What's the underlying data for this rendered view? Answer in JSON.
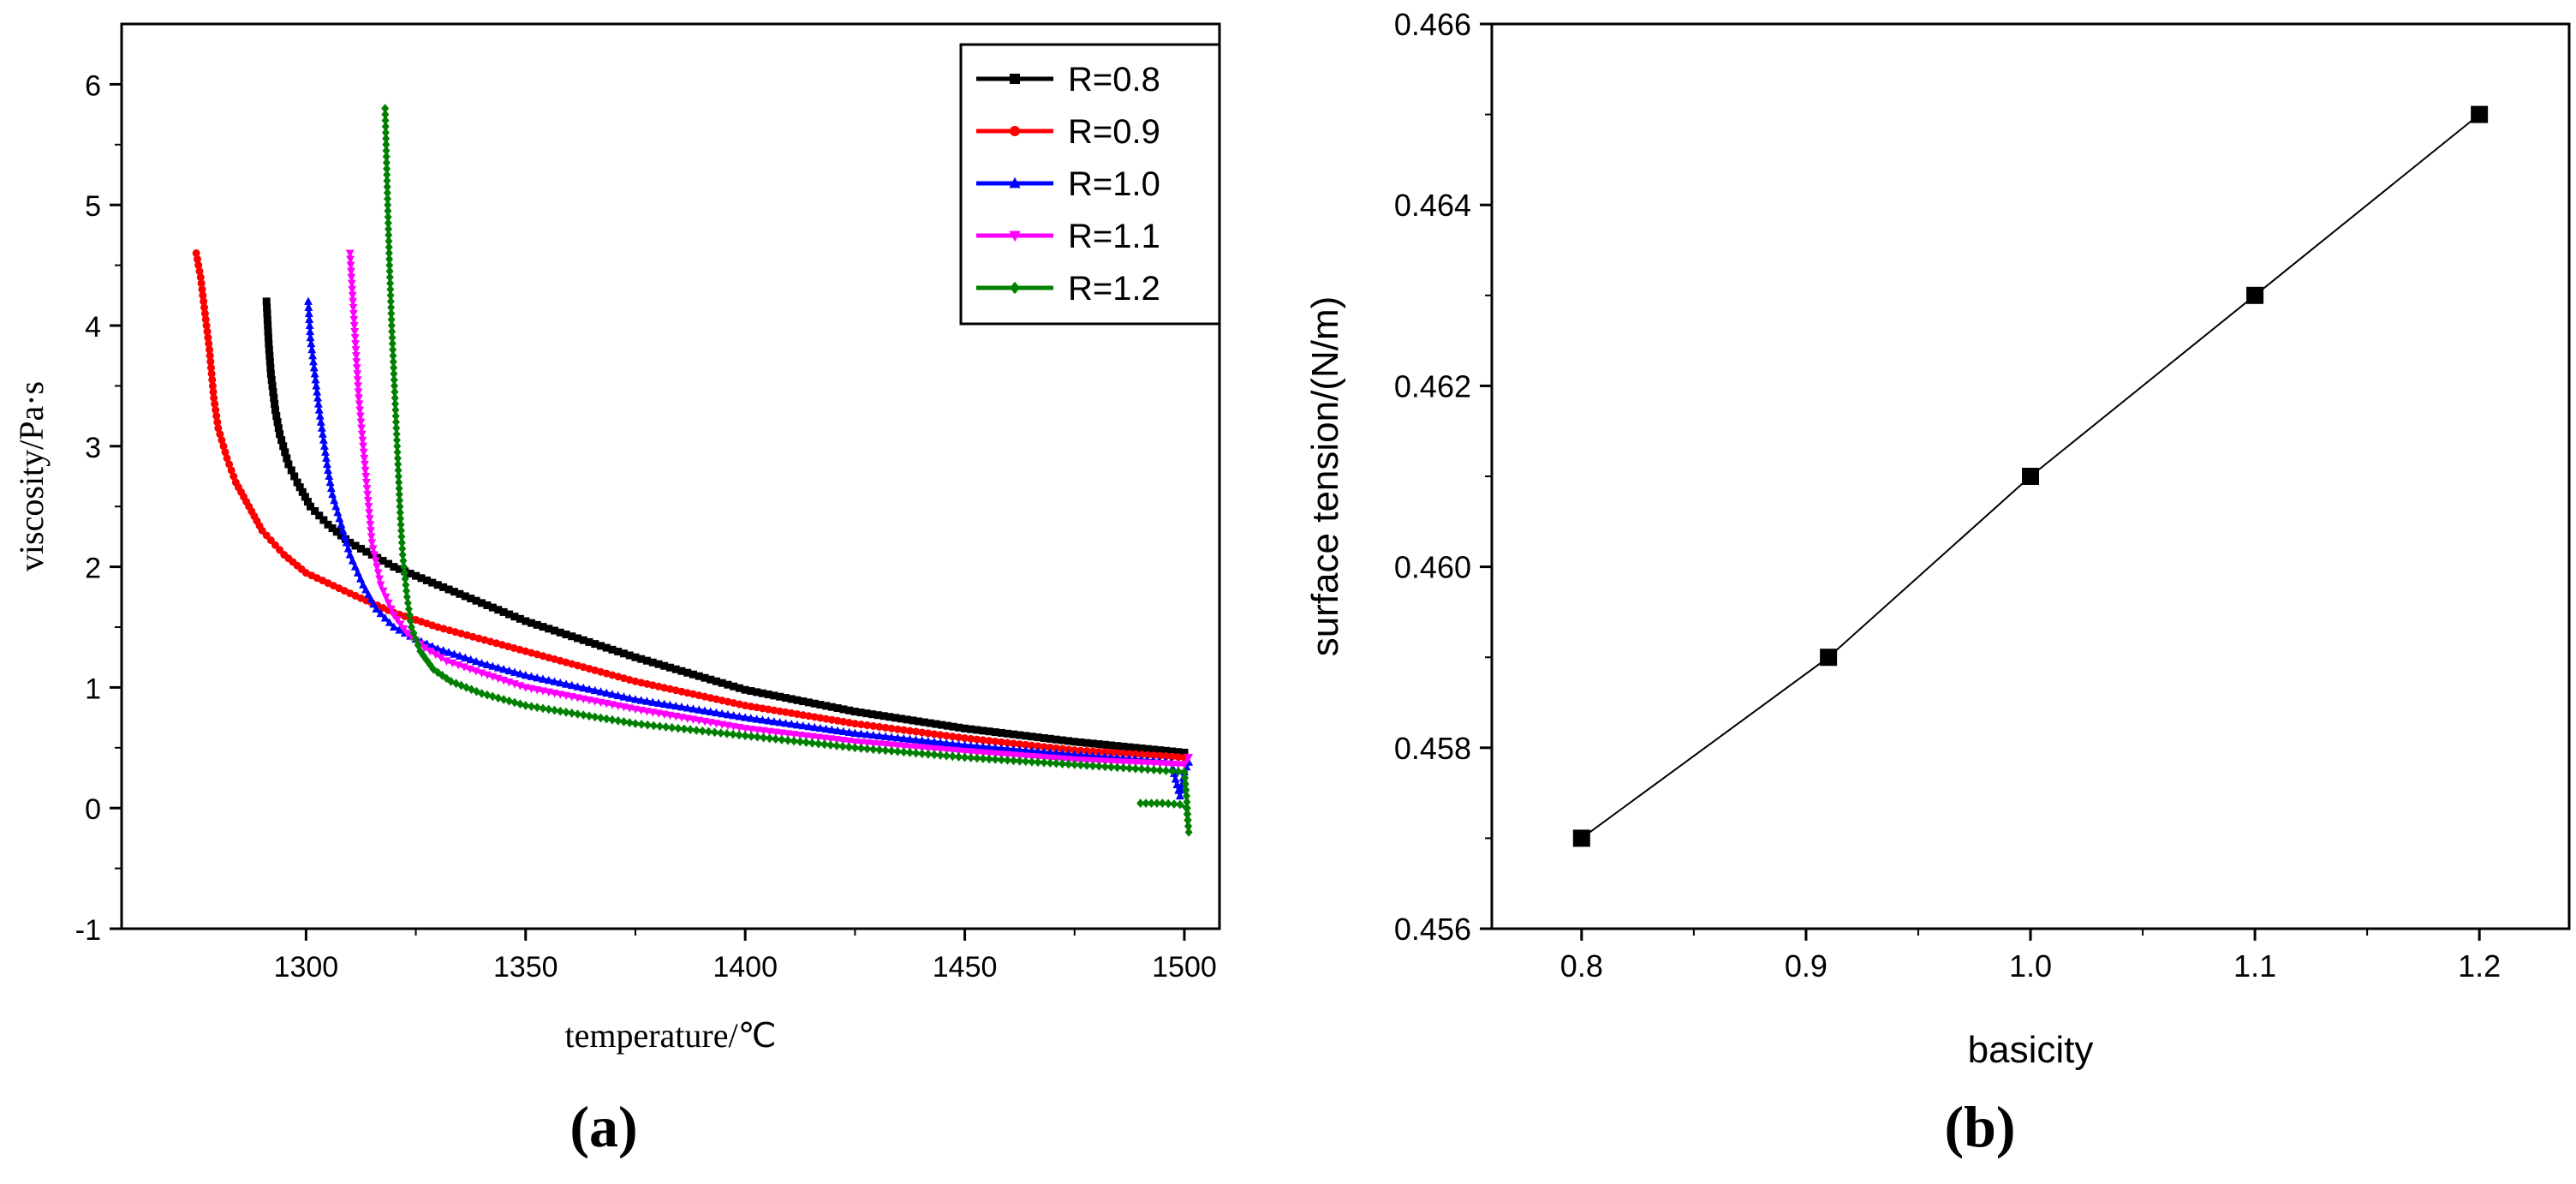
{
  "figure": {
    "panel_a_label": "(a)",
    "panel_b_label": "(b)"
  },
  "chart_data": [
    {
      "id": "a",
      "type": "line",
      "title": "",
      "xlabel": "temperature/℃",
      "ylabel": "viscosity/Pa·s",
      "xlim": [
        1258,
        1508
      ],
      "ylim": [
        -1,
        6.5
      ],
      "xticks": [
        1300,
        1350,
        1400,
        1450,
        1500
      ],
      "xtick_labels": [
        "1300",
        "1350",
        "1400",
        "1450",
        "1500"
      ],
      "yticks": [
        -1,
        0,
        1,
        2,
        3,
        4,
        5,
        6
      ],
      "ytick_labels": [
        "-1",
        "0",
        "1",
        "2",
        "3",
        "4",
        "5",
        "6"
      ],
      "grid": false,
      "legend_position": "top-right",
      "series": [
        {
          "name": "R=0.8",
          "color": "#000000",
          "marker": "square",
          "x": [
            1291,
            1291.5,
            1292,
            1293,
            1294,
            1296,
            1298,
            1301,
            1305,
            1310,
            1320,
            1330,
            1350,
            1375,
            1400,
            1425,
            1450,
            1475,
            1500
          ],
          "y": [
            4.2,
            3.85,
            3.6,
            3.3,
            3.1,
            2.85,
            2.7,
            2.5,
            2.35,
            2.2,
            2.0,
            1.85,
            1.55,
            1.25,
            0.98,
            0.8,
            0.66,
            0.55,
            0.46
          ]
        },
        {
          "name": "R=0.9",
          "color": "#ff0000",
          "marker": "circle",
          "x": [
            1275,
            1276,
            1277,
            1278,
            1279,
            1280,
            1282,
            1284,
            1287,
            1290,
            1295,
            1300,
            1310,
            1320,
            1330,
            1350,
            1375,
            1400,
            1425,
            1450,
            1475,
            1500
          ],
          "y": [
            4.6,
            4.4,
            4.1,
            3.8,
            3.4,
            3.15,
            2.9,
            2.7,
            2.5,
            2.3,
            2.1,
            1.95,
            1.78,
            1.62,
            1.5,
            1.3,
            1.05,
            0.85,
            0.7,
            0.58,
            0.48,
            0.42
          ]
        },
        {
          "name": "R=1.0",
          "color": "#0000ff",
          "marker": "triangle",
          "x": [
            1300.5,
            1301,
            1302,
            1303,
            1304,
            1305,
            1306,
            1308,
            1310,
            1313,
            1316,
            1320,
            1325,
            1330,
            1340,
            1350,
            1375,
            1400,
            1425,
            1450,
            1475,
            1497,
            1499,
            1500,
            1501
          ],
          "y": [
            4.2,
            3.9,
            3.6,
            3.3,
            3.05,
            2.8,
            2.6,
            2.35,
            2.1,
            1.85,
            1.65,
            1.5,
            1.4,
            1.32,
            1.2,
            1.1,
            0.9,
            0.75,
            0.62,
            0.52,
            0.44,
            0.38,
            0.1,
            0.3,
            0.38
          ]
        },
        {
          "name": "R=1.1",
          "color": "#ff00ff",
          "marker": "triangle-down",
          "x": [
            1310,
            1310.5,
            1311,
            1311.5,
            1312,
            1313,
            1314,
            1315,
            1317,
            1320,
            1323,
            1327,
            1332,
            1340,
            1350,
            1375,
            1400,
            1425,
            1450,
            1475,
            1500,
            1501
          ],
          "y": [
            4.6,
            4.3,
            4.0,
            3.7,
            3.4,
            3.0,
            2.6,
            2.2,
            1.85,
            1.6,
            1.45,
            1.33,
            1.22,
            1.12,
            1.0,
            0.82,
            0.66,
            0.55,
            0.47,
            0.4,
            0.36,
            0.42
          ]
        },
        {
          "name": "R=1.2",
          "color": "#008000",
          "marker": "diamond",
          "x": [
            1318,
            1318.3,
            1318.6,
            1319,
            1319.5,
            1320,
            1320.5,
            1321,
            1321.5,
            1322,
            1323,
            1324,
            1326,
            1329,
            1333,
            1340,
            1350,
            1375,
            1400,
            1425,
            1450,
            1475,
            1500,
            1500.5,
            1501,
            1500.5,
            1499,
            1495,
            1490
          ],
          "y": [
            5.8,
            5.4,
            5.0,
            4.5,
            4.0,
            3.6,
            3.2,
            2.8,
            2.4,
            2.1,
            1.75,
            1.5,
            1.3,
            1.15,
            1.05,
            0.95,
            0.85,
            0.7,
            0.6,
            0.5,
            0.42,
            0.36,
            0.3,
            0.1,
            -0.2,
            0.0,
            0.03,
            0.04,
            0.04
          ]
        }
      ]
    },
    {
      "id": "b",
      "type": "line",
      "title": "",
      "xlabel": "basicity",
      "ylabel": "surface tension/(N/m)",
      "xlim": [
        0.76,
        1.24
      ],
      "ylim": [
        0.456,
        0.466
      ],
      "xticks": [
        0.8,
        0.9,
        1.0,
        1.1,
        1.2
      ],
      "xtick_labels": [
        "0.8",
        "0.9",
        "1.0",
        "1.1",
        "1.2"
      ],
      "yticks": [
        0.456,
        0.458,
        0.46,
        0.462,
        0.464,
        0.466
      ],
      "ytick_labels": [
        "0.456",
        "0.458",
        "0.460",
        "0.462",
        "0.464",
        "0.466"
      ],
      "grid": false,
      "legend_position": "none",
      "series": [
        {
          "name": "surface tension",
          "color": "#000000",
          "marker": "square",
          "x": [
            0.8,
            0.91,
            1.0,
            1.1,
            1.2
          ],
          "y": [
            0.457,
            0.459,
            0.461,
            0.463,
            0.465
          ]
        }
      ]
    }
  ]
}
